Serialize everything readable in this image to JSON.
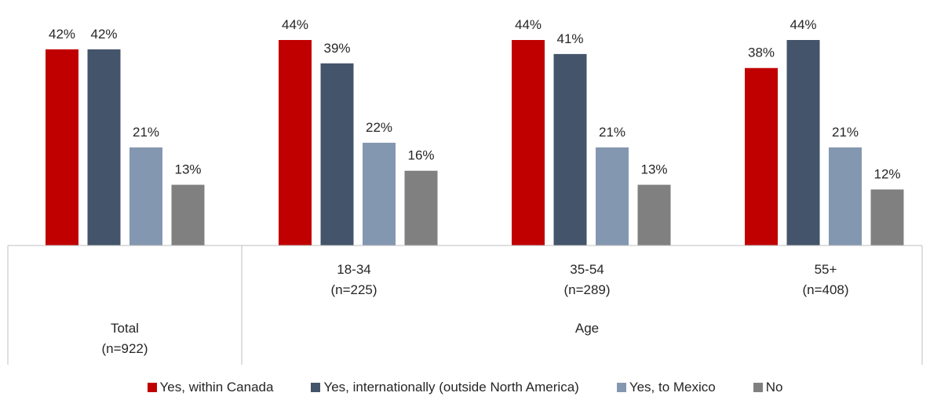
{
  "chart_data": {
    "type": "bar",
    "groups": [
      {
        "categories": [
          {
            "line1": "Total",
            "line2": "(n=922)"
          }
        ],
        "label": ""
      },
      {
        "categories": [
          {
            "line1": "18-34",
            "line2": "(n=225)"
          },
          {
            "line1": "35-54",
            "line2": "(n=289)"
          },
          {
            "line1": "55+",
            "line2": "(n=408)"
          }
        ],
        "label": "Age"
      }
    ],
    "categories": [
      "Total (n=922)",
      "18-34 (n=225)",
      "35-54 (n=289)",
      "55+ (n=408)"
    ],
    "series": [
      {
        "name": "Yes, within Canada",
        "color": "#C00000",
        "values": [
          42,
          44,
          44,
          38
        ],
        "labels": [
          "42%",
          "44%",
          "44%",
          "38%"
        ]
      },
      {
        "name": "Yes, internationally (outside North America)",
        "color": "#44546A",
        "values": [
          42,
          39,
          41,
          44
        ],
        "labels": [
          "42%",
          "39%",
          "41%",
          "44%"
        ]
      },
      {
        "name": "Yes, to Mexico",
        "color": "#8497B0",
        "values": [
          21,
          22,
          21,
          21
        ],
        "labels": [
          "21%",
          "22%",
          "21%",
          "21%"
        ]
      },
      {
        "name": "No",
        "color": "#808080",
        "values": [
          13,
          16,
          13,
          12
        ],
        "labels": [
          "13%",
          "16%",
          "13%",
          "12%"
        ]
      }
    ],
    "value_format": "percent",
    "ylim": [
      0,
      45
    ],
    "grid": false,
    "legend_position": "bottom",
    "title": "",
    "xlabel": "",
    "ylabel": ""
  }
}
